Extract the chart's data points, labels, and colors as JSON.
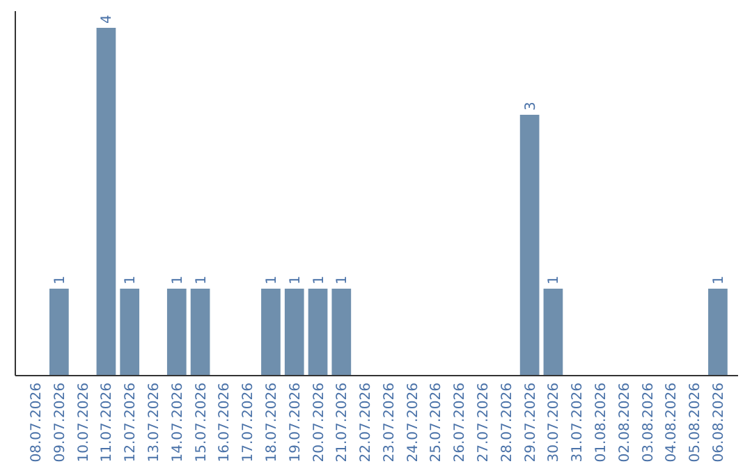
{
  "chart_data": {
    "type": "bar",
    "categories": [
      "08.07.2026",
      "09.07.2026",
      "10.07.2026",
      "11.07.2026",
      "12.07.2026",
      "13.07.2026",
      "14.07.2026",
      "15.07.2026",
      "16.07.2026",
      "17.07.2026",
      "18.07.2026",
      "19.07.2026",
      "20.07.2026",
      "21.07.2026",
      "22.07.2026",
      "23.07.2026",
      "24.07.2026",
      "25.07.2026",
      "26.07.2026",
      "27.07.2026",
      "28.07.2026",
      "29.07.2026",
      "30.07.2026",
      "31.07.2026",
      "01.08.2026",
      "02.08.2026",
      "03.08.2026",
      "04.08.2026",
      "05.08.2026",
      "06.08.2026"
    ],
    "values": [
      0,
      1,
      0,
      4,
      1,
      0,
      1,
      1,
      0,
      0,
      1,
      1,
      1,
      1,
      0,
      0,
      0,
      0,
      0,
      0,
      0,
      3,
      1,
      0,
      0,
      0,
      0,
      0,
      0,
      1
    ],
    "value_labels": [
      null,
      "1",
      null,
      "4",
      "1",
      null,
      "1",
      "1",
      null,
      null,
      "1",
      "1",
      "1",
      "1",
      null,
      null,
      null,
      null,
      null,
      null,
      null,
      "3",
      "1",
      null,
      null,
      null,
      null,
      null,
      null,
      "1"
    ],
    "color": "#6f8fad"
  }
}
